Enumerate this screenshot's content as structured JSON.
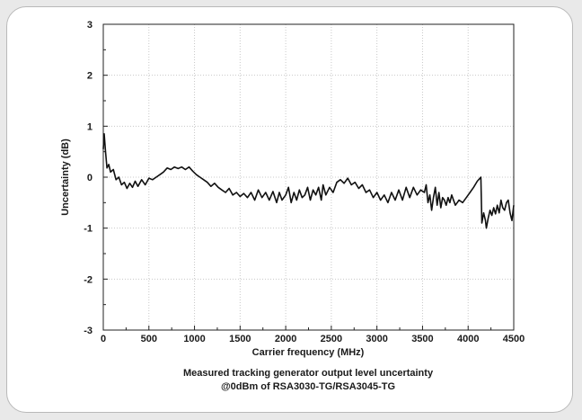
{
  "chart_data": {
    "type": "line",
    "xlabel": "Carrier frequency (MHz)",
    "ylabel": "Uncertainty (dB)",
    "caption_lines": [
      "Measured tracking generator output level uncertainty",
      "@0dBm of RSA3030-TG/RSA3045-TG"
    ],
    "xlim": [
      0,
      4500
    ],
    "ylim": [
      -3,
      3
    ],
    "x_ticks": [
      0,
      500,
      1000,
      1500,
      2000,
      2500,
      3000,
      3500,
      4000,
      4500
    ],
    "y_ticks": [
      -3,
      -2,
      -1,
      0,
      1,
      2,
      3
    ],
    "grid": true,
    "grid_style": "dotted",
    "line_color": "#111111",
    "series": [
      {
        "points": [
          [
            0,
            0.55
          ],
          [
            10,
            0.85
          ],
          [
            25,
            0.5
          ],
          [
            40,
            0.18
          ],
          [
            60,
            0.25
          ],
          [
            80,
            0.1
          ],
          [
            110,
            0.15
          ],
          [
            140,
            -0.05
          ],
          [
            170,
            0.0
          ],
          [
            200,
            -0.15
          ],
          [
            230,
            -0.1
          ],
          [
            260,
            -0.22
          ],
          [
            290,
            -0.12
          ],
          [
            320,
            -0.2
          ],
          [
            350,
            -0.08
          ],
          [
            380,
            -0.18
          ],
          [
            420,
            -0.05
          ],
          [
            460,
            -0.15
          ],
          [
            500,
            -0.02
          ],
          [
            540,
            -0.05
          ],
          [
            580,
            0.0
          ],
          [
            620,
            0.05
          ],
          [
            660,
            0.1
          ],
          [
            700,
            0.18
          ],
          [
            740,
            0.15
          ],
          [
            780,
            0.2
          ],
          [
            820,
            0.17
          ],
          [
            860,
            0.2
          ],
          [
            900,
            0.15
          ],
          [
            940,
            0.2
          ],
          [
            980,
            0.12
          ],
          [
            1020,
            0.05
          ],
          [
            1060,
            0.0
          ],
          [
            1100,
            -0.05
          ],
          [
            1140,
            -0.1
          ],
          [
            1180,
            -0.18
          ],
          [
            1220,
            -0.12
          ],
          [
            1260,
            -0.2
          ],
          [
            1300,
            -0.25
          ],
          [
            1340,
            -0.3
          ],
          [
            1380,
            -0.22
          ],
          [
            1420,
            -0.35
          ],
          [
            1460,
            -0.3
          ],
          [
            1500,
            -0.38
          ],
          [
            1540,
            -0.32
          ],
          [
            1580,
            -0.4
          ],
          [
            1620,
            -0.3
          ],
          [
            1660,
            -0.45
          ],
          [
            1700,
            -0.25
          ],
          [
            1740,
            -0.4
          ],
          [
            1780,
            -0.3
          ],
          [
            1820,
            -0.45
          ],
          [
            1860,
            -0.28
          ],
          [
            1900,
            -0.5
          ],
          [
            1930,
            -0.3
          ],
          [
            1960,
            -0.45
          ],
          [
            2000,
            -0.35
          ],
          [
            2030,
            -0.2
          ],
          [
            2060,
            -0.5
          ],
          [
            2090,
            -0.3
          ],
          [
            2120,
            -0.45
          ],
          [
            2150,
            -0.25
          ],
          [
            2180,
            -0.4
          ],
          [
            2210,
            -0.35
          ],
          [
            2240,
            -0.2
          ],
          [
            2270,
            -0.45
          ],
          [
            2300,
            -0.25
          ],
          [
            2330,
            -0.35
          ],
          [
            2360,
            -0.2
          ],
          [
            2390,
            -0.45
          ],
          [
            2410,
            -0.15
          ],
          [
            2440,
            -0.35
          ],
          [
            2480,
            -0.2
          ],
          [
            2520,
            -0.3
          ],
          [
            2560,
            -0.1
          ],
          [
            2600,
            -0.05
          ],
          [
            2640,
            -0.12
          ],
          [
            2680,
            -0.02
          ],
          [
            2720,
            -0.15
          ],
          [
            2760,
            -0.1
          ],
          [
            2800,
            -0.22
          ],
          [
            2840,
            -0.15
          ],
          [
            2880,
            -0.3
          ],
          [
            2920,
            -0.25
          ],
          [
            2960,
            -0.4
          ],
          [
            3000,
            -0.3
          ],
          [
            3040,
            -0.45
          ],
          [
            3080,
            -0.35
          ],
          [
            3120,
            -0.5
          ],
          [
            3160,
            -0.3
          ],
          [
            3200,
            -0.45
          ],
          [
            3240,
            -0.25
          ],
          [
            3280,
            -0.45
          ],
          [
            3320,
            -0.2
          ],
          [
            3360,
            -0.4
          ],
          [
            3400,
            -0.2
          ],
          [
            3440,
            -0.35
          ],
          [
            3480,
            -0.25
          ],
          [
            3520,
            -0.3
          ],
          [
            3540,
            -0.15
          ],
          [
            3560,
            -0.5
          ],
          [
            3580,
            -0.35
          ],
          [
            3600,
            -0.65
          ],
          [
            3620,
            -0.4
          ],
          [
            3640,
            -0.2
          ],
          [
            3660,
            -0.55
          ],
          [
            3680,
            -0.3
          ],
          [
            3700,
            -0.6
          ],
          [
            3720,
            -0.4
          ],
          [
            3740,
            -0.45
          ],
          [
            3760,
            -0.55
          ],
          [
            3780,
            -0.4
          ],
          [
            3800,
            -0.5
          ],
          [
            3820,
            -0.35
          ],
          [
            3860,
            -0.55
          ],
          [
            3900,
            -0.45
          ],
          [
            3940,
            -0.5
          ],
          [
            3980,
            -0.4
          ],
          [
            4020,
            -0.3
          ],
          [
            4060,
            -0.2
          ],
          [
            4100,
            -0.08
          ],
          [
            4140,
            0.0
          ],
          [
            4150,
            -0.9
          ],
          [
            4170,
            -0.7
          ],
          [
            4190,
            -0.85
          ],
          [
            4200,
            -1.0
          ],
          [
            4220,
            -0.8
          ],
          [
            4240,
            -0.65
          ],
          [
            4260,
            -0.75
          ],
          [
            4280,
            -0.6
          ],
          [
            4300,
            -0.72
          ],
          [
            4320,
            -0.55
          ],
          [
            4340,
            -0.7
          ],
          [
            4360,
            -0.45
          ],
          [
            4380,
            -0.6
          ],
          [
            4400,
            -0.65
          ],
          [
            4420,
            -0.5
          ],
          [
            4440,
            -0.45
          ],
          [
            4460,
            -0.7
          ],
          [
            4480,
            -0.85
          ],
          [
            4500,
            -0.55
          ]
        ]
      }
    ]
  }
}
